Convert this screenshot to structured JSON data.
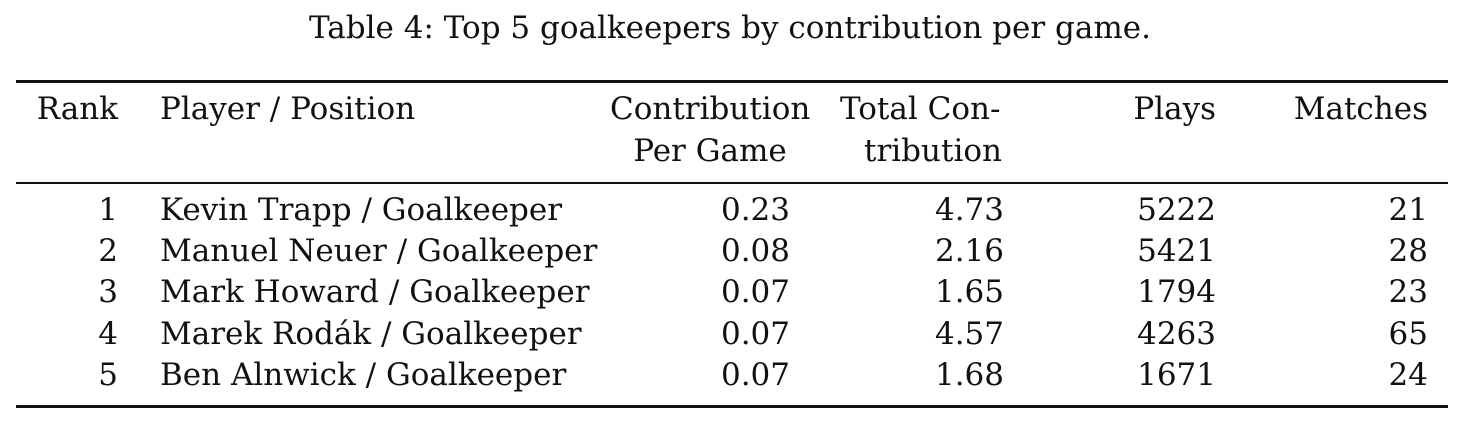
{
  "caption": "Table 4: Top 5 goalkeepers by contribution per game.",
  "table": {
    "headers": {
      "rank": "Rank",
      "player": "Player / Position",
      "cpg_line1": "Contribution",
      "cpg_line2": "Per Game",
      "total_line1": "Total Con-",
      "total_line2": "tribution",
      "plays": "Plays",
      "matches": "Matches"
    },
    "rows": [
      {
        "rank": "1",
        "player": "Kevin Trapp / Goalkeeper",
        "cpg": "0.23",
        "total": "4.73",
        "plays": "5222",
        "matches": "21"
      },
      {
        "rank": "2",
        "player": "Manuel Neuer / Goalkeeper",
        "cpg": "0.08",
        "total": "2.16",
        "plays": "5421",
        "matches": "28"
      },
      {
        "rank": "3",
        "player": "Mark Howard / Goalkeeper",
        "cpg": "0.07",
        "total": "1.65",
        "plays": "1794",
        "matches": "23"
      },
      {
        "rank": "4",
        "player": "Marek Rodák / Goalkeeper",
        "cpg": "0.07",
        "total": "4.57",
        "plays": "4263",
        "matches": "65"
      },
      {
        "rank": "5",
        "player": "Ben Alnwick / Goalkeeper",
        "cpg": "0.07",
        "total": "1.68",
        "plays": "1671",
        "matches": "24"
      }
    ]
  }
}
